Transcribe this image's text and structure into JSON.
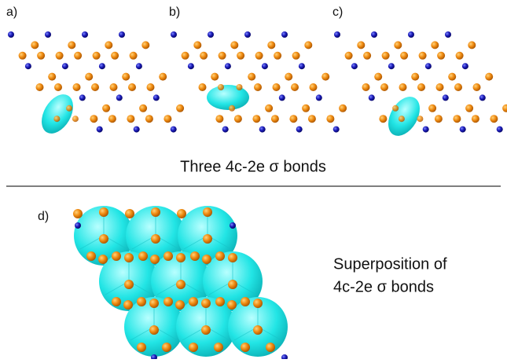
{
  "panels": [
    {
      "label": "a)"
    },
    {
      "label": "b)"
    },
    {
      "label": "c)"
    }
  ],
  "caption": "Three 4c-2e σ bonds",
  "panel_d": {
    "label": "d)",
    "caption_lines": [
      "Superposition of",
      "4c-2e σ bonds"
    ]
  }
}
